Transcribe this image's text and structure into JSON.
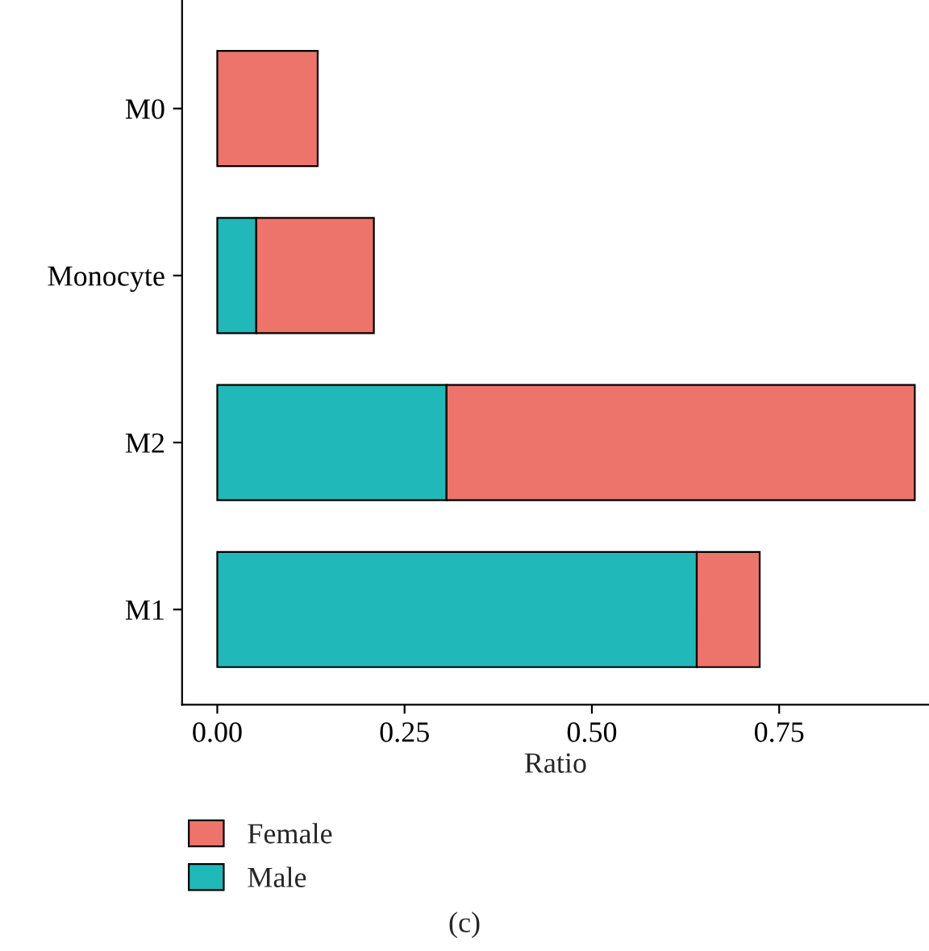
{
  "chart_data": {
    "type": "bar",
    "orientation": "horizontal",
    "stacked": true,
    "xlabel": "Ratio",
    "categories": [
      "M0",
      "Monocyte",
      "M2",
      "M1"
    ],
    "series": [
      {
        "name": "Male",
        "color": "#20b8b8",
        "values": [
          null,
          0.052,
          0.306,
          0.64
        ]
      },
      {
        "name": "Female",
        "color": "#ed746a",
        "values": [
          0.134,
          0.157,
          0.625,
          0.084
        ]
      }
    ],
    "xlim": [
      -0.047,
      0.95
    ],
    "xticks": [
      {
        "value": 0,
        "label": "0.00"
      },
      {
        "value": 0.25,
        "label": "0.25"
      },
      {
        "value": 0.5,
        "label": "0.50"
      },
      {
        "value": 0.75,
        "label": "0.75"
      }
    ],
    "grid": false,
    "legend": "bottom",
    "annotations": [
      "(c)"
    ]
  }
}
